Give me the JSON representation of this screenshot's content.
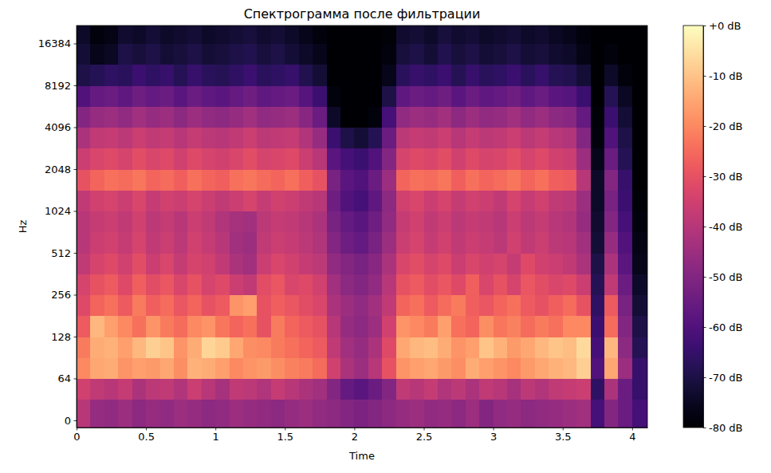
{
  "chart_data": {
    "type": "heatmap",
    "title": "Спектрограмма после фильтрации",
    "x_label": "Time",
    "y_label": "Hz",
    "log": "y",
    "grid": false,
    "color": "magma",
    "xlim": [
      0,
      4.11
    ],
    "xticks": [
      0,
      0.5,
      1,
      1.5,
      2,
      2.5,
      3,
      3.5,
      4
    ],
    "ylim": [
      -11,
      22050
    ],
    "yticks": [
      0,
      64,
      128,
      256,
      512,
      1024,
      2048,
      4096,
      8192,
      16384
    ],
    "x_edges": [
      0,
      0.1,
      0.2,
      0.3,
      0.4,
      0.5,
      0.6,
      0.7,
      0.8,
      0.9,
      1.0,
      1.1,
      1.2,
      1.3,
      1.4,
      1.5,
      1.6,
      1.7,
      1.8,
      1.9,
      2.0,
      2.1,
      2.2,
      2.3,
      2.4,
      2.5,
      2.6,
      2.7,
      2.8,
      2.9,
      3.0,
      3.1,
      3.2,
      3.3,
      3.4,
      3.5,
      3.6,
      3.7,
      3.8,
      3.9,
      4.0,
      4.11
    ],
    "y_edges": [
      -11,
      32,
      64,
      90,
      128,
      181,
      256,
      362,
      512,
      724,
      1024,
      1448,
      2048,
      2896,
      4096,
      5793,
      8192,
      11585,
      16384,
      22050
    ],
    "values": [
      [
        -40,
        -46,
        -47,
        -45,
        -48,
        -46,
        -47,
        -45,
        -46,
        -48,
        -47,
        -45,
        -46,
        -47,
        -48,
        -46,
        -45,
        -47,
        -48,
        -50,
        -51,
        -50,
        -48,
        -46,
        -45,
        -47,
        -46,
        -48,
        -45,
        -50,
        -47,
        -46,
        -48,
        -47,
        -46,
        -45,
        -44,
        -62,
        -50,
        -55,
        -62
      ],
      [
        -35,
        -38,
        -40,
        -37,
        -42,
        -39,
        -38,
        -41,
        -36,
        -40,
        -43,
        -38,
        -39,
        -41,
        -37,
        -40,
        -42,
        -44,
        -50,
        -56,
        -58,
        -55,
        -50,
        -38,
        -40,
        -37,
        -41,
        -39,
        -42,
        -38,
        -40,
        -43,
        -39,
        -41,
        -38,
        -37,
        -36,
        -66,
        -42,
        -55,
        -65
      ],
      [
        -20,
        -15,
        -14,
        -18,
        -16,
        -17,
        -15,
        -19,
        -13,
        -14,
        -16,
        -20,
        -18,
        -17,
        -19,
        -21,
        -22,
        -25,
        -35,
        -42,
        -45,
        -40,
        -30,
        -18,
        -16,
        -15,
        -17,
        -19,
        -14,
        -16,
        -18,
        -20,
        -17,
        -15,
        -13,
        -12,
        -8,
        -60,
        -15,
        -45,
        -65
      ],
      [
        -22,
        -14,
        -13,
        -16,
        -12,
        -8,
        -10,
        -18,
        -14,
        -7,
        -9,
        -15,
        -19,
        -20,
        -22,
        -24,
        -26,
        -28,
        -38,
        -44,
        -46,
        -42,
        -32,
        -15,
        -12,
        -11,
        -14,
        -18,
        -16,
        -10,
        -13,
        -17,
        -15,
        -12,
        -10,
        -11,
        -6,
        -62,
        -12,
        -48,
        -68
      ],
      [
        -28,
        -12,
        -16,
        -20,
        -24,
        -18,
        -22,
        -25,
        -20,
        -18,
        -23,
        -26,
        -24,
        -30,
        -22,
        -26,
        -28,
        -30,
        -40,
        -46,
        -48,
        -45,
        -35,
        -18,
        -20,
        -22,
        -16,
        -24,
        -26,
        -19,
        -23,
        -21,
        -25,
        -22,
        -24,
        -20,
        -20,
        -64,
        -25,
        -50,
        -70
      ],
      [
        -32,
        -26,
        -24,
        -28,
        -22,
        -27,
        -25,
        -29,
        -26,
        -30,
        -28,
        -18,
        -16,
        -30,
        -27,
        -29,
        -31,
        -33,
        -42,
        -45,
        -47,
        -44,
        -38,
        -26,
        -24,
        -28,
        -25,
        -22,
        -27,
        -29,
        -26,
        -24,
        -28,
        -30,
        -27,
        -25,
        -30,
        -66,
        -28,
        -52,
        -72
      ],
      [
        -34,
        -30,
        -28,
        -32,
        -27,
        -31,
        -29,
        -33,
        -30,
        -34,
        -32,
        -36,
        -38,
        -31,
        -29,
        -33,
        -32,
        -35,
        -44,
        -48,
        -50,
        -47,
        -40,
        -30,
        -28,
        -31,
        -29,
        -32,
        -27,
        -33,
        -30,
        -34,
        -29,
        -31,
        -33,
        -32,
        -36,
        -68,
        -38,
        -55,
        -74
      ],
      [
        -38,
        -34,
        -32,
        -35,
        -31,
        -36,
        -33,
        -37,
        -34,
        -35,
        -38,
        -42,
        -44,
        -36,
        -33,
        -35,
        -37,
        -39,
        -47,
        -50,
        -52,
        -49,
        -42,
        -33,
        -31,
        -34,
        -32,
        -36,
        -33,
        -35,
        -34,
        -37,
        -32,
        -35,
        -36,
        -38,
        -42,
        -70,
        -42,
        -58,
        -76
      ],
      [
        -40,
        -36,
        -35,
        -37,
        -34,
        -38,
        -36,
        -39,
        -35,
        -37,
        -40,
        -44,
        -45,
        -38,
        -36,
        -37,
        -39,
        -41,
        -50,
        -54,
        -56,
        -52,
        -45,
        -36,
        -34,
        -37,
        -35,
        -38,
        -36,
        -37,
        -39,
        -35,
        -38,
        -36,
        -39,
        -40,
        -44,
        -72,
        -46,
        -60,
        -77
      ],
      [
        -40,
        -37,
        -36,
        -38,
        -35,
        -39,
        -37,
        -40,
        -36,
        -38,
        -41,
        -43,
        -44,
        -39,
        -37,
        -38,
        -40,
        -42,
        -52,
        -56,
        -58,
        -54,
        -47,
        -37,
        -35,
        -38,
        -36,
        -39,
        -37,
        -38,
        -40,
        -36,
        -39,
        -37,
        -40,
        -41,
        -46,
        -73,
        -50,
        -62,
        -78
      ],
      [
        -38,
        -35,
        -34,
        -36,
        -33,
        -37,
        -35,
        -36,
        -34,
        -36,
        -38,
        -36,
        -34,
        -37,
        -35,
        -36,
        -38,
        -40,
        -54,
        -60,
        -62,
        -57,
        -48,
        -35,
        -33,
        -36,
        -34,
        -37,
        -35,
        -36,
        -38,
        -34,
        -37,
        -35,
        -38,
        -39,
        -45,
        -74,
        -52,
        -64,
        -79
      ],
      [
        -30,
        -26,
        -24,
        -25,
        -23,
        -26,
        -25,
        -27,
        -24,
        -26,
        -27,
        -24,
        -23,
        -25,
        -26,
        -24,
        -27,
        -30,
        -52,
        -58,
        -60,
        -55,
        -45,
        -26,
        -24,
        -25,
        -23,
        -27,
        -24,
        -26,
        -25,
        -23,
        -26,
        -24,
        -27,
        -28,
        -40,
        -74,
        -50,
        -65,
        -80
      ],
      [
        -36,
        -33,
        -32,
        -34,
        -31,
        -33,
        -32,
        -35,
        -32,
        -34,
        -35,
        -33,
        -31,
        -34,
        -33,
        -32,
        -36,
        -40,
        -58,
        -62,
        -64,
        -60,
        -50,
        -34,
        -32,
        -33,
        -31,
        -35,
        -32,
        -34,
        -33,
        -31,
        -34,
        -32,
        -35,
        -36,
        -45,
        -76,
        -55,
        -68,
        -80
      ],
      [
        -42,
        -38,
        -37,
        -39,
        -36,
        -38,
        -37,
        -40,
        -37,
        -39,
        -40,
        -38,
        -36,
        -39,
        -38,
        -37,
        -41,
        -46,
        -64,
        -70,
        -72,
        -68,
        -55,
        -39,
        -37,
        -38,
        -36,
        -40,
        -37,
        -39,
        -38,
        -36,
        -39,
        -37,
        -40,
        -41,
        -50,
        -78,
        -60,
        -70,
        -80
      ],
      [
        -50,
        -46,
        -45,
        -47,
        -44,
        -46,
        -45,
        -48,
        -45,
        -47,
        -48,
        -46,
        -44,
        -47,
        -46,
        -45,
        -49,
        -55,
        -74,
        -80,
        -80,
        -78,
        -62,
        -47,
        -45,
        -46,
        -44,
        -48,
        -45,
        -47,
        -46,
        -44,
        -47,
        -45,
        -48,
        -49,
        -56,
        -79,
        -64,
        -72,
        -80
      ],
      [
        -60,
        -56,
        -55,
        -57,
        -54,
        -56,
        -55,
        -58,
        -55,
        -57,
        -58,
        -56,
        -54,
        -57,
        -56,
        -55,
        -59,
        -64,
        -78,
        -80,
        -80,
        -80,
        -70,
        -57,
        -55,
        -56,
        -54,
        -58,
        -55,
        -57,
        -56,
        -54,
        -57,
        -55,
        -58,
        -59,
        -64,
        -80,
        -68,
        -75,
        -80
      ],
      [
        -70,
        -68,
        -66,
        -67,
        -64,
        -66,
        -65,
        -68,
        -65,
        -67,
        -68,
        -66,
        -64,
        -67,
        -66,
        -65,
        -69,
        -72,
        -80,
        -80,
        -80,
        -80,
        -76,
        -67,
        -65,
        -66,
        -64,
        -68,
        -65,
        -67,
        -66,
        -64,
        -67,
        -65,
        -68,
        -69,
        -72,
        -80,
        -74,
        -78,
        -80
      ],
      [
        -72,
        -76,
        -75,
        -70,
        -71,
        -70,
        -72,
        -71,
        -70,
        -72,
        -71,
        -70,
        -69,
        -71,
        -70,
        -72,
        -74,
        -76,
        -80,
        -80,
        -80,
        -80,
        -78,
        -71,
        -70,
        -72,
        -69,
        -71,
        -70,
        -72,
        -71,
        -70,
        -72,
        -71,
        -73,
        -74,
        -77,
        -80,
        -78,
        -80,
        -80
      ],
      [
        -74,
        -78,
        -77,
        -73,
        -74,
        -72,
        -74,
        -73,
        -72,
        -74,
        -73,
        -72,
        -71,
        -73,
        -72,
        -74,
        -76,
        -78,
        -80,
        -80,
        -80,
        -80,
        -79,
        -73,
        -72,
        -74,
        -71,
        -73,
        -72,
        -74,
        -73,
        -72,
        -74,
        -73,
        -75,
        -76,
        -78,
        -80,
        -80,
        -80,
        -80
      ]
    ],
    "colorbar": {
      "range": [
        -80,
        0
      ],
      "ticks": [
        {
          "value": 0,
          "label": "+0 dB"
        },
        {
          "value": -10,
          "label": "-10 dB"
        },
        {
          "value": -20,
          "label": "-20 dB"
        },
        {
          "value": -30,
          "label": "-30 dB"
        },
        {
          "value": -40,
          "label": "-40 dB"
        },
        {
          "value": -50,
          "label": "-50 dB"
        },
        {
          "value": -60,
          "label": "-60 dB"
        },
        {
          "value": -70,
          "label": "-70 dB"
        },
        {
          "value": -80,
          "label": "-80 dB"
        }
      ]
    }
  }
}
